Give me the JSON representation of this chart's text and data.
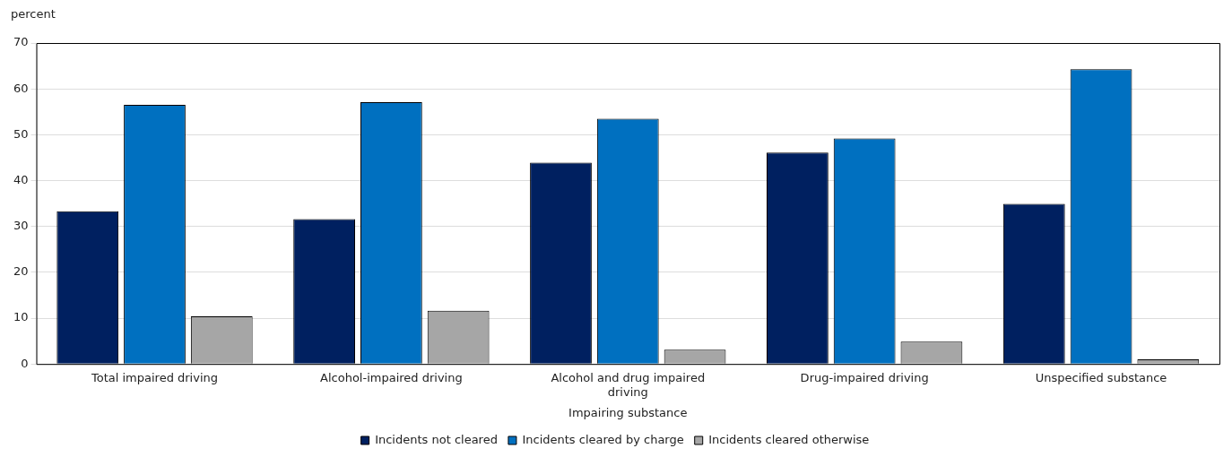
{
  "chart_data": {
    "type": "bar",
    "ylabel": "percent",
    "xlabel": "Impairing substance",
    "categories": [
      "Total impaired driving",
      "Alcohol-impaired driving",
      "Alcohol and drug impaired driving",
      "Drug-impaired driving",
      "Unspecified substance"
    ],
    "series": [
      {
        "name": "Incidents not cleared",
        "color": "#002060",
        "values": [
          33.3,
          31.6,
          43.9,
          46.1,
          34.9
        ]
      },
      {
        "name": "Incidents cleared by charge",
        "color": "#0070c0",
        "values": [
          56.5,
          57.1,
          53.5,
          49.2,
          64.3
        ]
      },
      {
        "name": "Incidents cleared otherwise",
        "color": "#a6a6a6",
        "values": [
          10.4,
          11.6,
          3.1,
          4.9,
          1.0
        ]
      }
    ],
    "ylim": [
      0,
      70
    ],
    "yticks": [
      0,
      10,
      20,
      30,
      40,
      50,
      60,
      70
    ],
    "grid": "y",
    "legend": "bottom"
  }
}
